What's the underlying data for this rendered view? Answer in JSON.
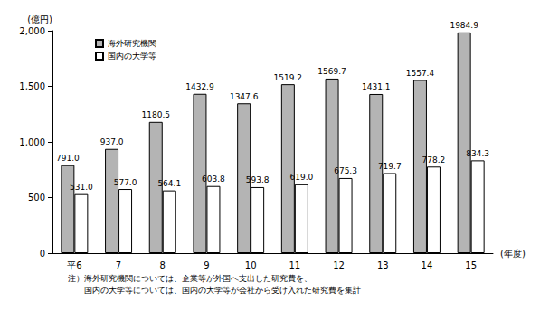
{
  "chart_data": {
    "type": "bar",
    "y_label": "(億円)",
    "x_label": "(年度)",
    "categories": [
      "平6",
      "7",
      "8",
      "9",
      "10",
      "11",
      "12",
      "13",
      "14",
      "15"
    ],
    "series": [
      {
        "name": "海外研究機関",
        "color": "#b4b4b4",
        "values": [
          791.0,
          937.0,
          1180.5,
          1432.9,
          1347.6,
          1519.2,
          1569.7,
          1431.1,
          1557.4,
          1984.9
        ],
        "value_labels": [
          "791.0",
          "937.0",
          "1180.5",
          "1432.9",
          "1347.6",
          "1519.2",
          "1569.7",
          "1431.1",
          "1557.4",
          "1984.9"
        ]
      },
      {
        "name": "国内の大学等",
        "color": "#ffffff",
        "values": [
          531.0,
          577.0,
          564.1,
          603.8,
          593.8,
          619.0,
          675.3,
          719.7,
          778.2,
          834.3
        ],
        "value_labels": [
          "531.0",
          "577.0",
          "564.1",
          "603.8",
          "593.8",
          "619.0",
          "675.3",
          "719.7",
          "778.2",
          "834.3"
        ]
      }
    ],
    "ylim": [
      0,
      2000
    ],
    "yticks": [
      0,
      500,
      1000,
      1500,
      2000
    ],
    "grid": false,
    "legend": "upper left",
    "data_labels": true,
    "notes": [
      "注）海外研究機関については、企業等が外国へ支出した研究費を、",
      "国内の大学等については、国内の大学等が会社から受け入れた研究費を集計"
    ]
  }
}
